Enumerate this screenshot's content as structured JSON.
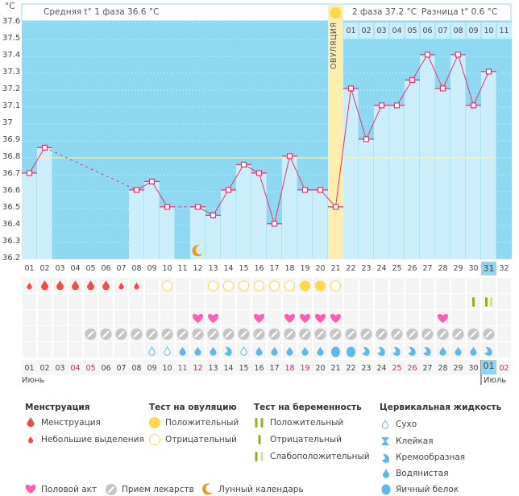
{
  "colors": {
    "plot_bg": "#8fd8f2",
    "bar_fill": "#cceefb",
    "line": "#e8336b",
    "ovulation_band": "#fdeeb0",
    "coverline": "#fff2a8",
    "menstruation": "#f04a4a",
    "ovulation_positive": "#fcd84a",
    "ovulation_negative": "#fcd84a",
    "pregnancy_dark": "#8ab21c",
    "pregnancy_light": "#cfe3a0",
    "sex": "#fb5eb3",
    "pill": "#c4c4c4",
    "fluid": "#5fb8ea",
    "moon": "#f5941e"
  },
  "header": {
    "unit_label": "°C",
    "phase1_label": "Средняя t° 1 фаза 36.6 °C",
    "phase2_label": "2 фаза 37.2 °C",
    "difference_label": "Разница t° 0.6 °C",
    "ovulation_label": "ОВУЛЯЦИЯ"
  },
  "chart_data": {
    "type": "line",
    "title": "Basal body temperature",
    "ylabel": "°C",
    "ylim": [
      36.2,
      37.6
    ],
    "yticks": [
      "37.6",
      "37.5",
      "37.4",
      "37.3",
      "37.2",
      "37.1",
      "37",
      "36.9",
      "36.8",
      "36.7",
      "36.6",
      "36.5",
      "36.4",
      "36.3",
      "36.2"
    ],
    "coverline": 36.8,
    "ovulation_day": 21,
    "cycle_days": [
      "01",
      "02",
      "03",
      "04",
      "05",
      "06",
      "07",
      "08",
      "09",
      "10",
      "11",
      "12",
      "13",
      "14",
      "15",
      "16",
      "17",
      "18",
      "19",
      "20",
      "21",
      "22",
      "23",
      "24",
      "25",
      "26",
      "27",
      "28",
      "29",
      "30",
      "31",
      "32"
    ],
    "post_ovulation_days": [
      "01",
      "02",
      "03",
      "04",
      "05",
      "06",
      "07",
      "08",
      "09",
      "10",
      "11"
    ],
    "temperatures": [
      36.71,
      36.86,
      null,
      null,
      null,
      null,
      null,
      36.61,
      36.66,
      36.51,
      null,
      36.51,
      36.46,
      36.61,
      36.76,
      36.71,
      36.41,
      36.81,
      36.61,
      36.61,
      36.51,
      37.21,
      36.91,
      37.11,
      37.11,
      37.26,
      37.41,
      37.21,
      37.41,
      37.11,
      37.31,
      null
    ],
    "current_day": 31
  },
  "rows": {
    "menstruation": [
      "small",
      "heavy",
      "heavy",
      "heavy",
      "heavy",
      "heavy",
      "small",
      "small",
      null,
      null,
      null,
      null,
      null,
      null,
      null,
      null,
      null,
      null,
      null,
      null,
      null,
      null,
      null,
      null,
      null,
      null,
      null,
      null,
      null,
      null,
      null,
      null
    ],
    "ovulation_test": [
      null,
      null,
      null,
      null,
      null,
      null,
      null,
      null,
      null,
      "negative",
      null,
      null,
      "negative",
      "negative",
      "negative",
      "negative",
      "negative",
      "negative",
      "positive",
      "positive",
      "negative",
      null,
      null,
      null,
      null,
      null,
      null,
      null,
      null,
      null,
      null,
      null
    ],
    "pregnancy_test": [
      null,
      null,
      null,
      null,
      null,
      null,
      null,
      null,
      null,
      null,
      null,
      null,
      null,
      null,
      null,
      null,
      null,
      null,
      null,
      null,
      null,
      null,
      null,
      null,
      null,
      null,
      null,
      null,
      null,
      "negative",
      "weak",
      null
    ],
    "sex": [
      null,
      null,
      null,
      null,
      null,
      null,
      null,
      null,
      null,
      null,
      null,
      "yes",
      "yes",
      null,
      null,
      "yes",
      null,
      "yes",
      "yes",
      "yes",
      "yes",
      null,
      null,
      null,
      null,
      null,
      null,
      "yes",
      null,
      null,
      null,
      null
    ],
    "pills": [
      null,
      null,
      null,
      null,
      "yes",
      "yes",
      "yes",
      "yes",
      "yes",
      "yes",
      "yes",
      "yes",
      "yes",
      "yes",
      "yes",
      "yes",
      "yes",
      "yes",
      "yes",
      "yes",
      "yes",
      "yes",
      "yes",
      "yes",
      "yes",
      "yes",
      "yes",
      "yes",
      "yes",
      "yes",
      "yes",
      null
    ],
    "cervical_fluid": [
      null,
      null,
      null,
      null,
      null,
      null,
      null,
      null,
      "dry",
      "dry",
      "watery",
      "watery",
      "watery",
      "creamy",
      "dry",
      "watery",
      "watery",
      "watery",
      "watery",
      "watery",
      "eggwhite",
      "eggwhite",
      "creamy",
      "creamy",
      "creamy",
      "creamy",
      "creamy",
      "watery",
      "watery",
      "watery",
      "creamy",
      null
    ],
    "moon_day": 12
  },
  "calendar": {
    "dates": [
      "01",
      "02",
      "03",
      "04",
      "05",
      "06",
      "07",
      "08",
      "09",
      "10",
      "11",
      "12",
      "13",
      "14",
      "15",
      "16",
      "17",
      "18",
      "19",
      "20",
      "21",
      "22",
      "23",
      "24",
      "25",
      "26",
      "27",
      "28",
      "29",
      "30",
      "01",
      "02"
    ],
    "weekend": [
      false,
      false,
      false,
      true,
      true,
      false,
      false,
      false,
      false,
      false,
      true,
      true,
      false,
      false,
      false,
      false,
      false,
      true,
      true,
      false,
      false,
      false,
      false,
      false,
      true,
      true,
      false,
      false,
      false,
      false,
      false,
      true
    ],
    "today_index": 30,
    "month_june": "Июнь",
    "month_july": "Июль"
  },
  "legend": {
    "menstruation": {
      "title": "Менструация",
      "items": [
        "Менструация",
        "Небольшие выделения"
      ]
    },
    "ovulation_test": {
      "title": "Тест на овуляцию",
      "items": [
        "Положительный",
        "Отрицательный"
      ]
    },
    "pregnancy_test": {
      "title": "Тест на беременность",
      "items": [
        "Положительный",
        "Отрицательный",
        "Слабоположительный"
      ]
    },
    "cervical_fluid": {
      "title": "Цервикальная жидкость",
      "items": [
        "Сухо",
        "Клейкая",
        "Кремообразная",
        "Водянистая",
        "Яичный белок"
      ]
    },
    "bottom": [
      "Половой акт",
      "Прием лекарств",
      "Лунный календарь"
    ]
  }
}
